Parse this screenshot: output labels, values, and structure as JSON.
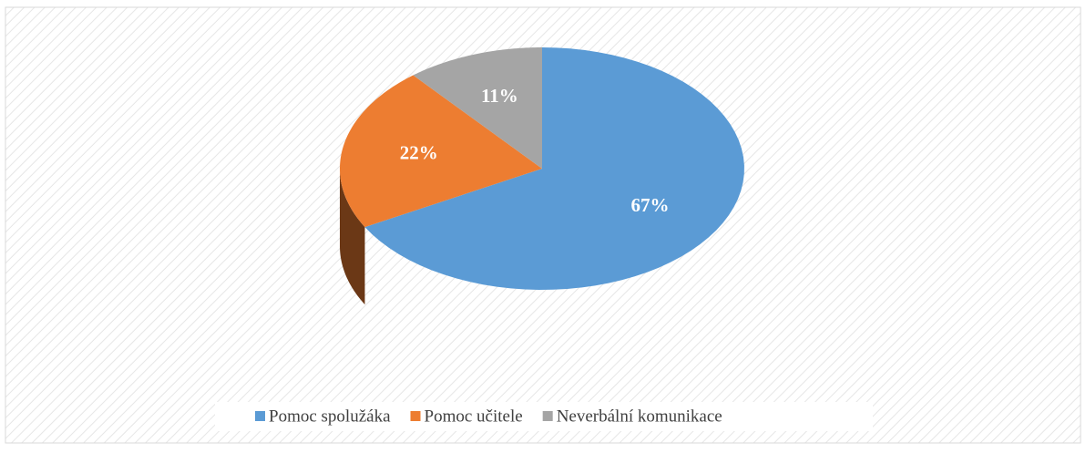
{
  "chart_data": {
    "type": "pie",
    "categories": [
      "Pomoc spolužáka",
      "Pomoc učitele",
      "Neverbální komunikace"
    ],
    "values": [
      67,
      22,
      11
    ],
    "value_labels": [
      "67%",
      "22%",
      "11%"
    ],
    "colors": [
      "#5b9bd5",
      "#ed7d31",
      "#a5a5a5"
    ],
    "legend": "bottom"
  }
}
